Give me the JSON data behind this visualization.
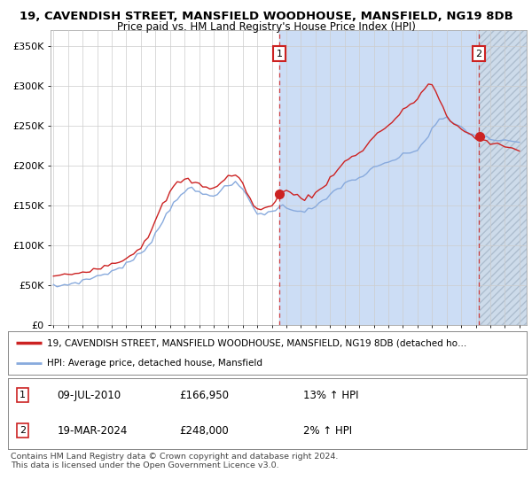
{
  "title_line1": "19, CAVENDISH STREET, MANSFIELD WOODHOUSE, MANSFIELD, NG19 8DB",
  "title_line2": "Price paid vs. HM Land Registry's House Price Index (HPI)",
  "ylabel_ticks": [
    "£0",
    "£50K",
    "£100K",
    "£150K",
    "£200K",
    "£250K",
    "£300K",
    "£350K"
  ],
  "ytick_values": [
    0,
    50000,
    100000,
    150000,
    200000,
    250000,
    300000,
    350000
  ],
  "ylim": [
    0,
    370000
  ],
  "xlim_start": 1994.8,
  "xlim_end": 2027.5,
  "transaction1_year": 2010.52,
  "transaction2_year": 2024.21,
  "transaction1_price": 166950,
  "transaction2_price": 248000,
  "red_line_color": "#cc2222",
  "blue_line_color": "#88aadd",
  "shade_color": "#ccddf5",
  "hatch_color": "#c8d8e8",
  "grid_color": "#cccccc",
  "legend_line1": "19, CAVENDISH STREET, MANSFIELD WOODHOUSE, MANSFIELD, NG19 8DB (detached ho…",
  "legend_line2": "HPI: Average price, detached house, Mansfield",
  "annotation1_date": "09-JUL-2010",
  "annotation1_price": "£166,950",
  "annotation1_hpi": "13% ↑ HPI",
  "annotation2_date": "19-MAR-2024",
  "annotation2_price": "£248,000",
  "annotation2_hpi": "2% ↑ HPI",
  "footer": "Contains HM Land Registry data © Crown copyright and database right 2024.\nThis data is licensed under the Open Government Licence v3.0.",
  "background_color": "#ffffff",
  "years_hpi": [
    1995.0,
    1995.25,
    1995.5,
    1995.75,
    1996.0,
    1996.25,
    1996.5,
    1996.75,
    1997.0,
    1997.25,
    1997.5,
    1997.75,
    1998.0,
    1998.25,
    1998.5,
    1998.75,
    1999.0,
    1999.25,
    1999.5,
    1999.75,
    2000.0,
    2000.25,
    2000.5,
    2000.75,
    2001.0,
    2001.25,
    2001.5,
    2001.75,
    2002.0,
    2002.25,
    2002.5,
    2002.75,
    2003.0,
    2003.25,
    2003.5,
    2003.75,
    2004.0,
    2004.25,
    2004.5,
    2004.75,
    2005.0,
    2005.25,
    2005.5,
    2005.75,
    2006.0,
    2006.25,
    2006.5,
    2006.75,
    2007.0,
    2007.25,
    2007.5,
    2007.75,
    2008.0,
    2008.25,
    2008.5,
    2008.75,
    2009.0,
    2009.25,
    2009.5,
    2009.75,
    2010.0,
    2010.25,
    2010.5,
    2010.75,
    2011.0,
    2011.25,
    2011.5,
    2011.75,
    2012.0,
    2012.25,
    2012.5,
    2012.75,
    2013.0,
    2013.25,
    2013.5,
    2013.75,
    2014.0,
    2014.25,
    2014.5,
    2014.75,
    2015.0,
    2015.25,
    2015.5,
    2015.75,
    2016.0,
    2016.25,
    2016.5,
    2016.75,
    2017.0,
    2017.25,
    2017.5,
    2017.75,
    2018.0,
    2018.25,
    2018.5,
    2018.75,
    2019.0,
    2019.25,
    2019.5,
    2019.75,
    2020.0,
    2020.25,
    2020.5,
    2020.75,
    2021.0,
    2021.25,
    2021.5,
    2021.75,
    2022.0,
    2022.25,
    2022.5,
    2022.75,
    2023.0,
    2023.25,
    2023.5,
    2023.75,
    2024.0,
    2024.25,
    2024.5,
    2024.75,
    2025.0,
    2025.5,
    2026.0,
    2026.5,
    2027.0
  ],
  "hpi_values": [
    48000,
    48500,
    49000,
    50000,
    51000,
    52000,
    53000,
    54000,
    55000,
    56500,
    58000,
    59500,
    61000,
    62500,
    64000,
    65500,
    67000,
    69000,
    71000,
    73500,
    76000,
    79000,
    82000,
    86000,
    90000,
    95000,
    100000,
    107000,
    114000,
    122000,
    130000,
    138000,
    146000,
    153000,
    160000,
    164000,
    168000,
    169000,
    170000,
    168000,
    166000,
    164000,
    163000,
    163000,
    164000,
    166000,
    168000,
    171000,
    174000,
    176000,
    177000,
    174000,
    170000,
    163000,
    155000,
    147000,
    141000,
    139000,
    138000,
    140000,
    143000,
    146000,
    148000,
    148000,
    147000,
    146000,
    145000,
    144000,
    143000,
    143000,
    144000,
    146000,
    148000,
    151000,
    154000,
    158000,
    163000,
    167000,
    171000,
    174000,
    177000,
    179000,
    181000,
    183000,
    185000,
    187000,
    190000,
    193000,
    196000,
    198000,
    200000,
    202000,
    204000,
    206000,
    208000,
    210000,
    212000,
    214000,
    216000,
    218000,
    220000,
    225000,
    230000,
    238000,
    246000,
    252000,
    256000,
    258000,
    258000,
    256000,
    253000,
    250000,
    247000,
    244000,
    241000,
    239000,
    237000,
    236000,
    235000,
    234000,
    233000,
    232000,
    231000,
    230000,
    229000
  ],
  "red_values": [
    60000,
    61000,
    62000,
    62500,
    63000,
    64000,
    65000,
    65500,
    66000,
    67500,
    69000,
    70500,
    72000,
    73000,
    74000,
    75000,
    76500,
    78000,
    80000,
    82000,
    84000,
    87000,
    90000,
    94000,
    98000,
    105000,
    112000,
    120000,
    130000,
    140000,
    150000,
    158000,
    166000,
    172000,
    178000,
    180000,
    182000,
    181000,
    180000,
    178000,
    176000,
    174000,
    172000,
    172000,
    173000,
    175000,
    178000,
    182000,
    186000,
    188000,
    188000,
    183000,
    177000,
    168000,
    158000,
    150000,
    145000,
    144000,
    145000,
    148000,
    152000,
    157000,
    163000,
    167000,
    167000,
    166000,
    164000,
    162000,
    160000,
    159000,
    160000,
    162000,
    165000,
    168000,
    172000,
    178000,
    184000,
    190000,
    196000,
    200000,
    204000,
    207000,
    210000,
    213000,
    216000,
    220000,
    225000,
    230000,
    236000,
    240000,
    244000,
    247000,
    250000,
    254000,
    258000,
    263000,
    268000,
    273000,
    277000,
    280000,
    283000,
    290000,
    297000,
    302000,
    300000,
    293000,
    283000,
    272000,
    262000,
    255000,
    250000,
    248000,
    246000,
    243000,
    240000,
    238000,
    236000,
    234000,
    232000,
    230000,
    228000,
    226000,
    224000,
    222000,
    220000
  ]
}
